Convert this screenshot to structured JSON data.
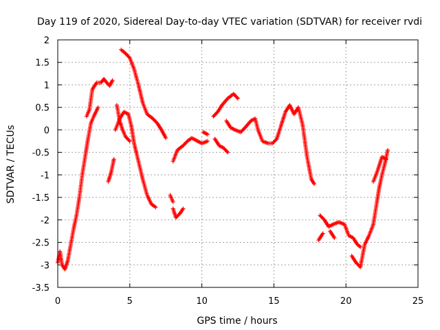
{
  "chart_data": {
    "type": "scatter",
    "title": "Day 119 of 2020, Sidereal Day-to-day VTEC variation (SDTVAR) for receiver rvdi",
    "xlabel": "GPS time / hours",
    "ylabel": "SDTVAR / TECUs",
    "xlim": [
      0,
      25
    ],
    "ylim": [
      -3.5,
      2
    ],
    "x_ticks": [
      "0",
      "5",
      "10",
      "15",
      "20",
      "25"
    ],
    "y_ticks": [
      "2",
      "1.5",
      "1",
      "0.5",
      "0",
      "-0.5",
      "-1",
      "-1.5",
      "-2",
      "-2.5",
      "-3",
      "-3.5"
    ],
    "grid": true,
    "marker": "+",
    "color": "#ff0000",
    "segments": [
      [
        [
          0.0,
          -2.95
        ],
        [
          0.15,
          -2.7
        ],
        [
          0.3,
          -3.0
        ],
        [
          0.5,
          -3.1
        ],
        [
          0.7,
          -2.9
        ],
        [
          0.9,
          -2.55
        ],
        [
          1.1,
          -2.2
        ],
        [
          1.3,
          -1.9
        ],
        [
          1.5,
          -1.5
        ],
        [
          1.7,
          -1.0
        ],
        [
          1.9,
          -0.6
        ],
        [
          2.1,
          -0.2
        ],
        [
          2.3,
          0.15
        ],
        [
          2.5,
          0.3
        ],
        [
          2.8,
          0.5
        ]
      ],
      [
        [
          2.0,
          0.3
        ],
        [
          2.2,
          0.45
        ],
        [
          2.4,
          0.9
        ],
        [
          2.7,
          1.05
        ],
        [
          3.0,
          1.05
        ],
        [
          3.2,
          1.13
        ],
        [
          3.4,
          1.05
        ],
        [
          3.6,
          0.98
        ],
        [
          3.8,
          1.1
        ]
      ],
      [
        [
          3.5,
          -1.15
        ],
        [
          3.7,
          -0.95
        ],
        [
          3.9,
          -0.65
        ]
      ],
      [
        [
          4.1,
          0.55
        ],
        [
          4.3,
          0.2
        ],
        [
          4.5,
          0.0
        ],
        [
          4.7,
          -0.15
        ],
        [
          5.0,
          -0.25
        ]
      ],
      [
        [
          4.4,
          1.78
        ],
        [
          4.7,
          1.7
        ],
        [
          5.0,
          1.6
        ],
        [
          5.3,
          1.35
        ],
        [
          5.6,
          1.0
        ],
        [
          5.9,
          0.6
        ],
        [
          6.2,
          0.35
        ],
        [
          6.6,
          0.25
        ],
        [
          6.9,
          0.15
        ],
        [
          7.2,
          0.0
        ],
        [
          7.5,
          -0.18
        ]
      ],
      [
        [
          4.0,
          0.0
        ],
        [
          4.3,
          0.25
        ],
        [
          4.6,
          0.4
        ],
        [
          4.9,
          0.35
        ],
        [
          5.1,
          0.1
        ],
        [
          5.3,
          -0.3
        ],
        [
          5.6,
          -0.7
        ],
        [
          5.9,
          -1.1
        ],
        [
          6.2,
          -1.45
        ],
        [
          6.5,
          -1.65
        ],
        [
          6.8,
          -1.72
        ]
      ],
      [
        [
          7.8,
          -1.45
        ],
        [
          8.0,
          -1.6
        ]
      ],
      [
        [
          8.0,
          -1.75
        ],
        [
          8.2,
          -1.95
        ],
        [
          8.5,
          -1.85
        ],
        [
          8.7,
          -1.75
        ]
      ],
      [
        [
          8.0,
          -0.7
        ],
        [
          8.3,
          -0.45
        ],
        [
          8.7,
          -0.35
        ],
        [
          9.0,
          -0.25
        ],
        [
          9.3,
          -0.18
        ],
        [
          9.7,
          -0.25
        ],
        [
          10.0,
          -0.3
        ],
        [
          10.4,
          -0.25
        ]
      ],
      [
        [
          10.1,
          -0.05
        ],
        [
          10.4,
          -0.1
        ]
      ],
      [
        [
          10.8,
          0.3
        ],
        [
          11.1,
          0.4
        ],
        [
          11.4,
          0.55
        ],
        [
          11.8,
          0.7
        ],
        [
          12.2,
          0.8
        ],
        [
          12.5,
          0.7
        ]
      ],
      [
        [
          10.9,
          -0.2
        ],
        [
          11.2,
          -0.35
        ],
        [
          11.5,
          -0.4
        ],
        [
          11.8,
          -0.5
        ]
      ],
      [
        [
          11.7,
          0.2
        ],
        [
          12.0,
          0.05
        ],
        [
          12.3,
          0.0
        ],
        [
          12.7,
          -0.05
        ],
        [
          13.0,
          0.05
        ],
        [
          13.4,
          0.2
        ],
        [
          13.7,
          0.25
        ],
        [
          13.9,
          0.0
        ],
        [
          14.2,
          -0.25
        ],
        [
          14.6,
          -0.3
        ],
        [
          14.9,
          -0.3
        ],
        [
          15.2,
          -0.2
        ],
        [
          15.5,
          0.1
        ],
        [
          15.8,
          0.4
        ],
        [
          16.1,
          0.55
        ],
        [
          16.4,
          0.35
        ],
        [
          16.7,
          0.5
        ],
        [
          17.0,
          0.1
        ],
        [
          17.3,
          -0.6
        ],
        [
          17.6,
          -1.1
        ],
        [
          17.8,
          -1.2
        ]
      ],
      [
        [
          18.1,
          -2.45
        ],
        [
          18.4,
          -2.3
        ]
      ],
      [
        [
          18.2,
          -1.9
        ],
        [
          18.5,
          -2.0
        ],
        [
          18.8,
          -2.15
        ],
        [
          19.1,
          -2.1
        ],
        [
          19.5,
          -2.05
        ],
        [
          19.9,
          -2.1
        ],
        [
          20.2,
          -2.35
        ],
        [
          20.5,
          -2.4
        ],
        [
          20.8,
          -2.55
        ],
        [
          21.0,
          -2.6
        ]
      ],
      [
        [
          18.9,
          -2.25
        ],
        [
          19.2,
          -2.4
        ]
      ],
      [
        [
          20.4,
          -2.8
        ],
        [
          20.7,
          -2.95
        ],
        [
          21.0,
          -3.05
        ],
        [
          21.3,
          -2.55
        ],
        [
          21.6,
          -2.35
        ],
        [
          21.9,
          -2.1
        ],
        [
          22.1,
          -1.7
        ],
        [
          22.3,
          -1.3
        ],
        [
          22.5,
          -1.0
        ],
        [
          22.7,
          -0.75
        ],
        [
          22.9,
          -0.45
        ]
      ],
      [
        [
          21.9,
          -1.15
        ],
        [
          22.2,
          -0.9
        ],
        [
          22.5,
          -0.6
        ],
        [
          22.8,
          -0.65
        ]
      ]
    ]
  }
}
